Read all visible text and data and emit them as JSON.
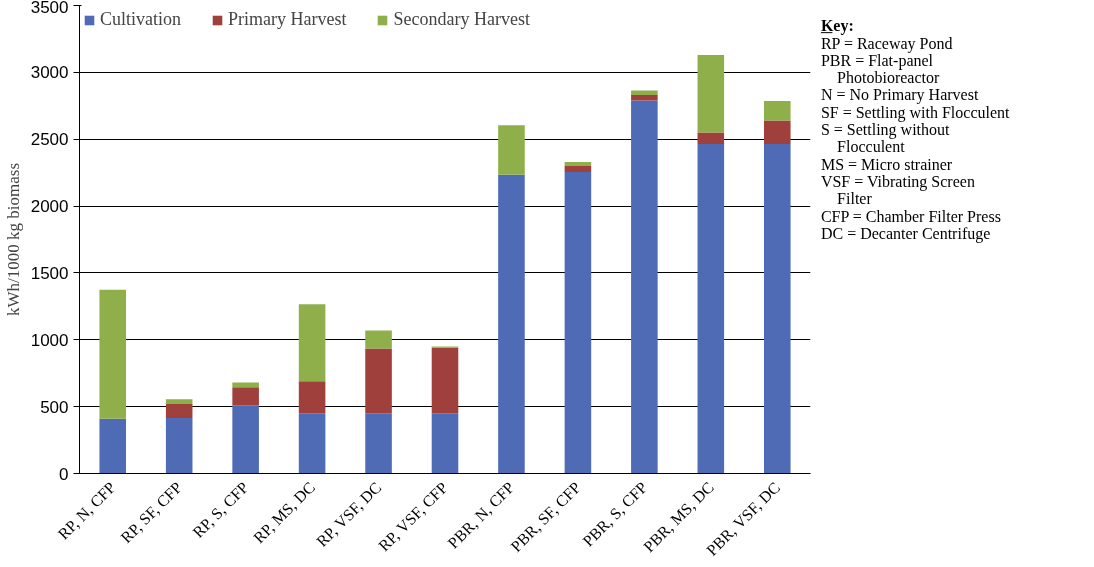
{
  "chart_data": {
    "type": "bar",
    "stacked": true,
    "ylabel": "kWh/1000 kg biomass",
    "categories": [
      "RP, N, CFP",
      "RP, SF, CFP",
      "RP, S, CFP",
      "RP, MS, DC",
      "RP, VSF, DC",
      "RP, VSF, CFP",
      "PBR, N, CFP",
      "PBR, SF, CFP",
      "PBR, S, CFP",
      "PBR, MS, DC",
      "PBR, VSF, DC"
    ],
    "series": [
      {
        "name": "Cultivation",
        "color": "#4f6bb5",
        "values": [
          410,
          415,
          510,
          450,
          450,
          450,
          2235,
          2255,
          2790,
          2465,
          2465
        ]
      },
      {
        "name": "Primary Harvest",
        "color": "#a0403d",
        "values": [
          0,
          105,
          135,
          240,
          485,
          490,
          0,
          45,
          40,
          85,
          175
        ]
      },
      {
        "name": "Secondary Harvest",
        "color": "#8faf4a",
        "values": [
          965,
          35,
          35,
          575,
          135,
          10,
          370,
          30,
          35,
          580,
          145
        ]
      }
    ],
    "ylim": [
      0,
      3500
    ],
    "yticks": [
      0,
      500,
      1000,
      1500,
      2000,
      2500,
      3000,
      3500
    ],
    "grid": "y",
    "legend": "top left",
    "annotations": [
      "Key:",
      "RP = Raceway Pond",
      "PBR = Flat-panel\nPhotobioreactor",
      "N = No Primary Harvest",
      "SF = Settling with Flocculent",
      "S = Settling without\nFlocculent",
      "MS = Micro strainer",
      "VSF = Vibrating Screen\nFilter",
      "CFP = Chamber Filter Press",
      "DC = Decanter Centrifuge"
    ]
  }
}
